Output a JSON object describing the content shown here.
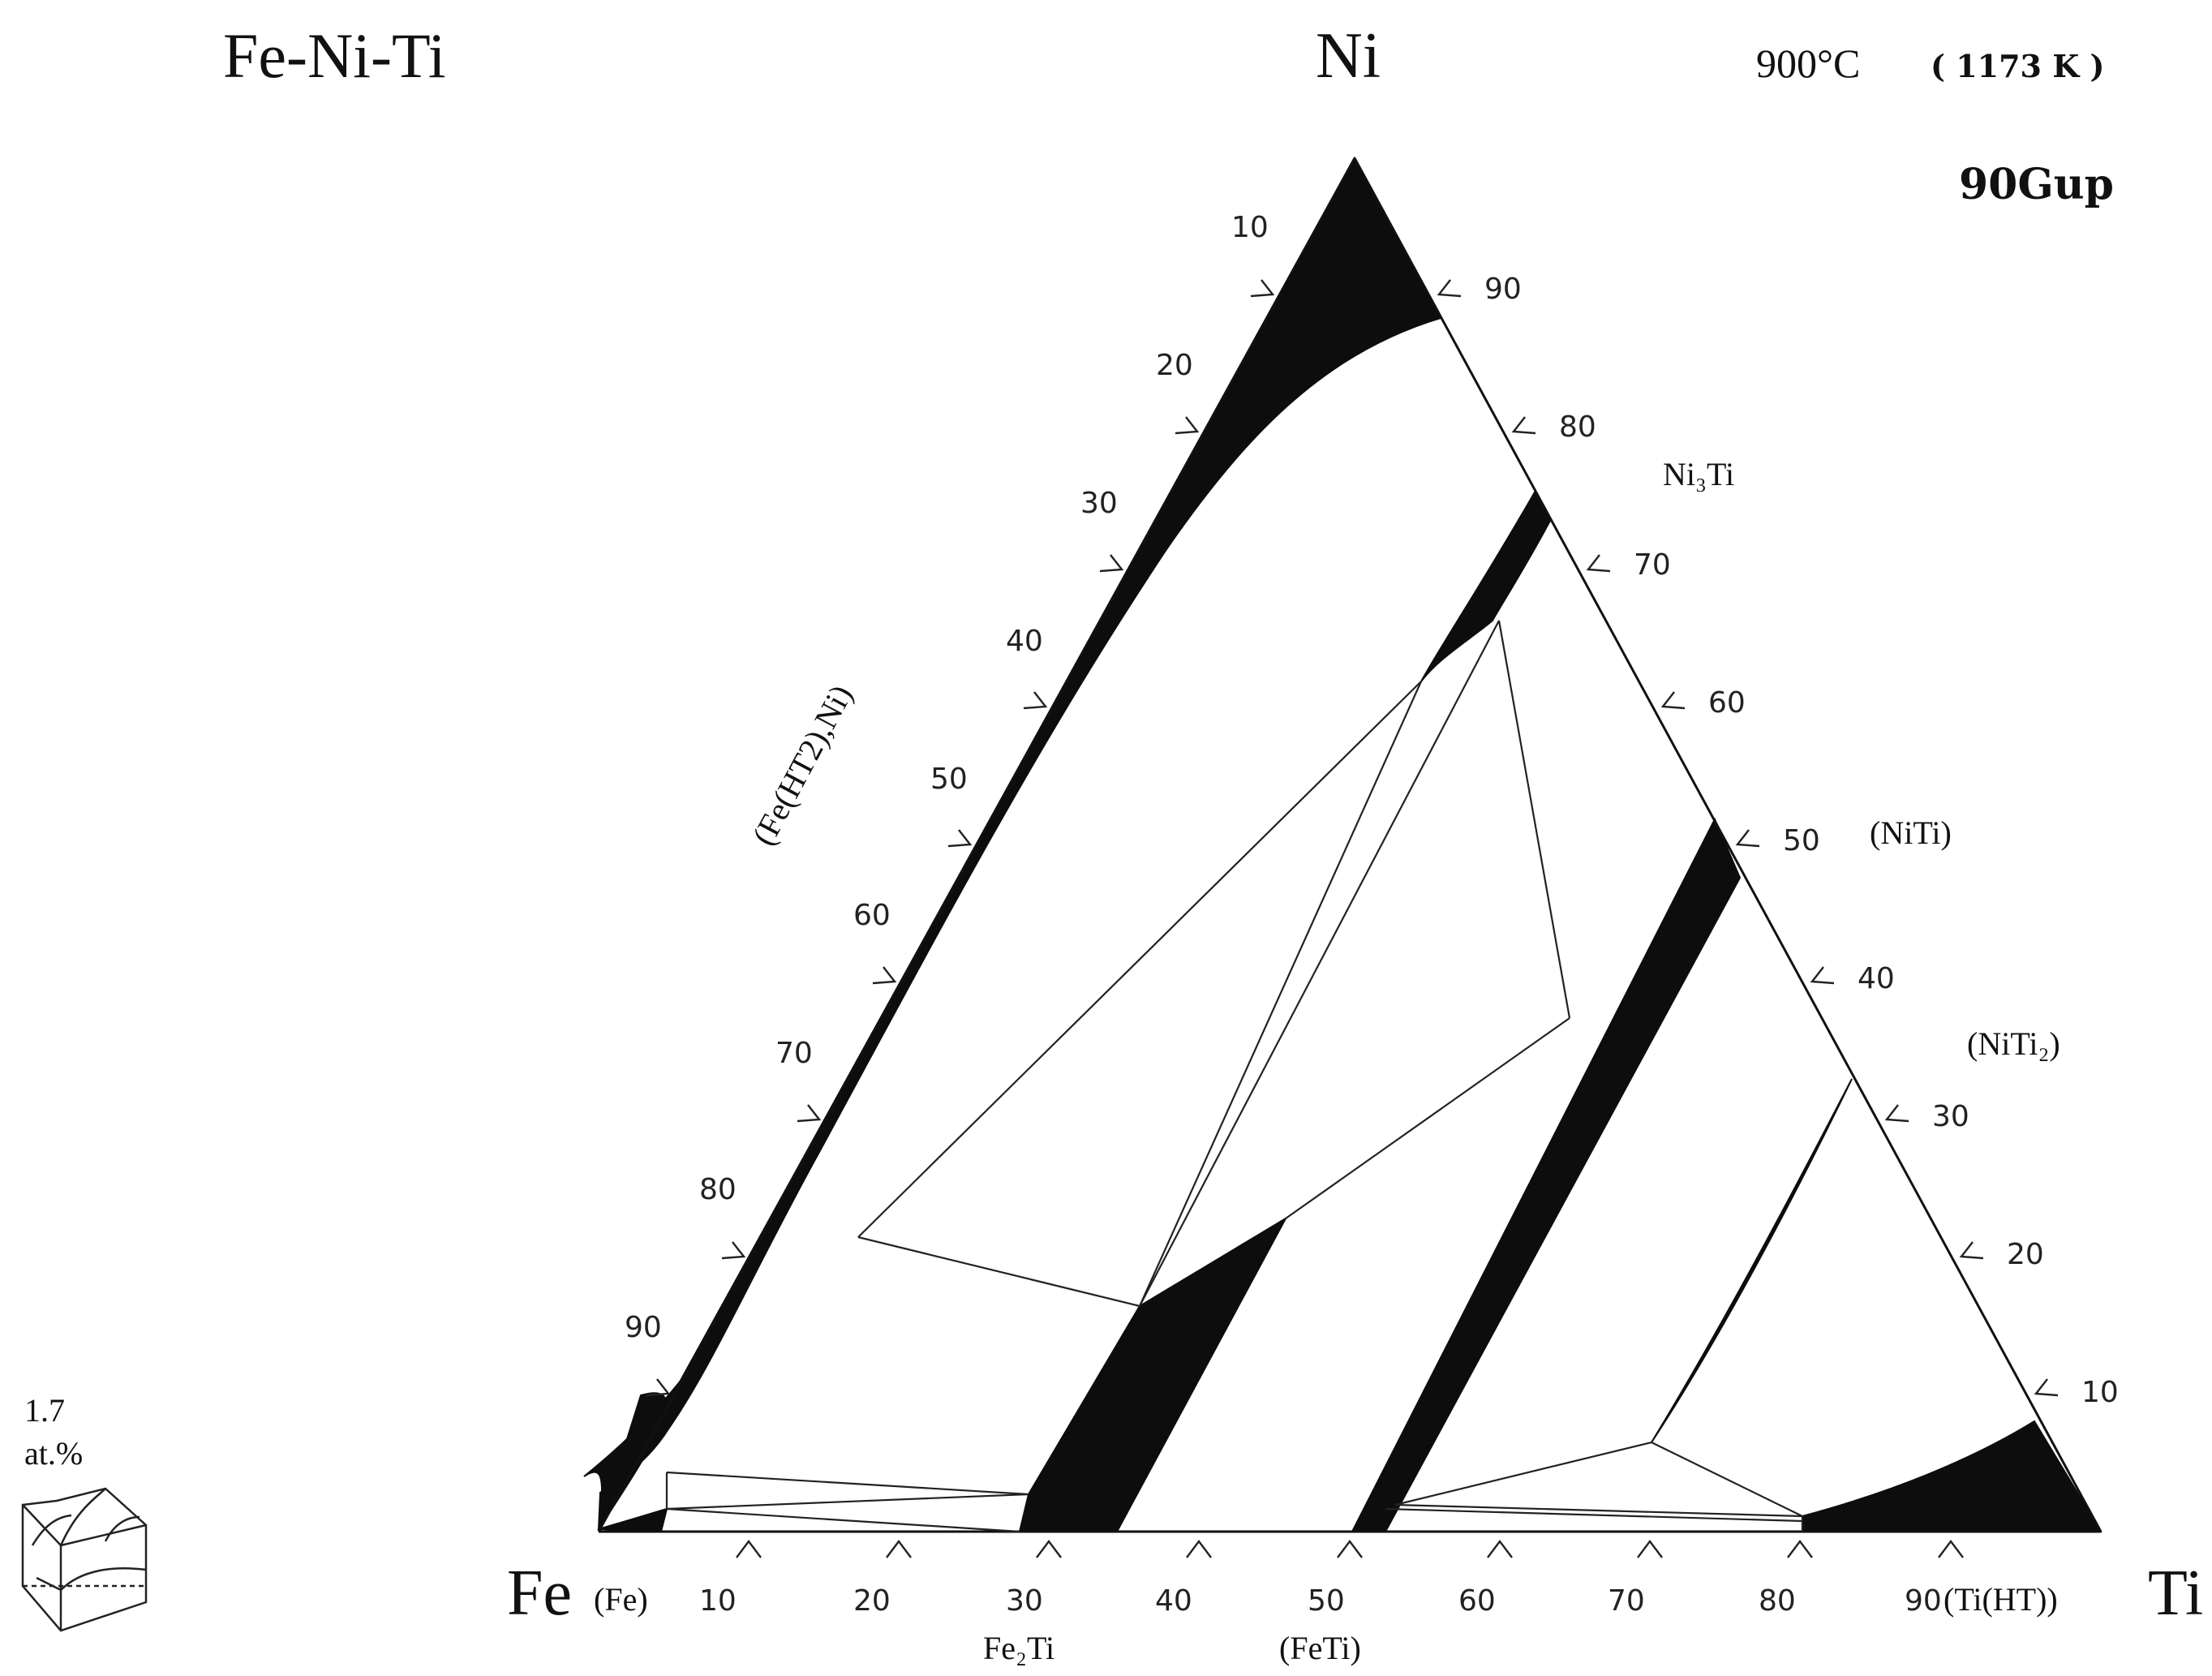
{
  "title": "Fe-Ni-Ti",
  "temperature": "900°C",
  "temperature_k": "( 1173 K )",
  "reference": "90Gup",
  "corners": {
    "top": "Ni",
    "left": "Fe",
    "right": "Ti"
  },
  "phases": {
    "fe_ni": "(Fe(HT2),Ni)",
    "ni3ti": "Ni₃Ti",
    "niti": "(NiTi)",
    "niti2": "(NiTi₂)",
    "fe": "(Fe)",
    "fe2ti": "Fe₂Ti",
    "feti": "(FeTi)",
    "ti": "(Ti(HT))"
  },
  "left_axis_ticks": [
    "10",
    "20",
    "30",
    "40",
    "50",
    "60",
    "70",
    "80",
    "90"
  ],
  "right_axis_ticks": [
    "90",
    "80",
    "70",
    "60",
    "50",
    "40",
    "30",
    "20",
    "10"
  ],
  "bottom_axis_ticks": [
    "10",
    "20",
    "30",
    "40",
    "50",
    "60",
    "70",
    "80",
    "90"
  ],
  "inset": {
    "value": "1.7",
    "unit": "at.%"
  }
}
